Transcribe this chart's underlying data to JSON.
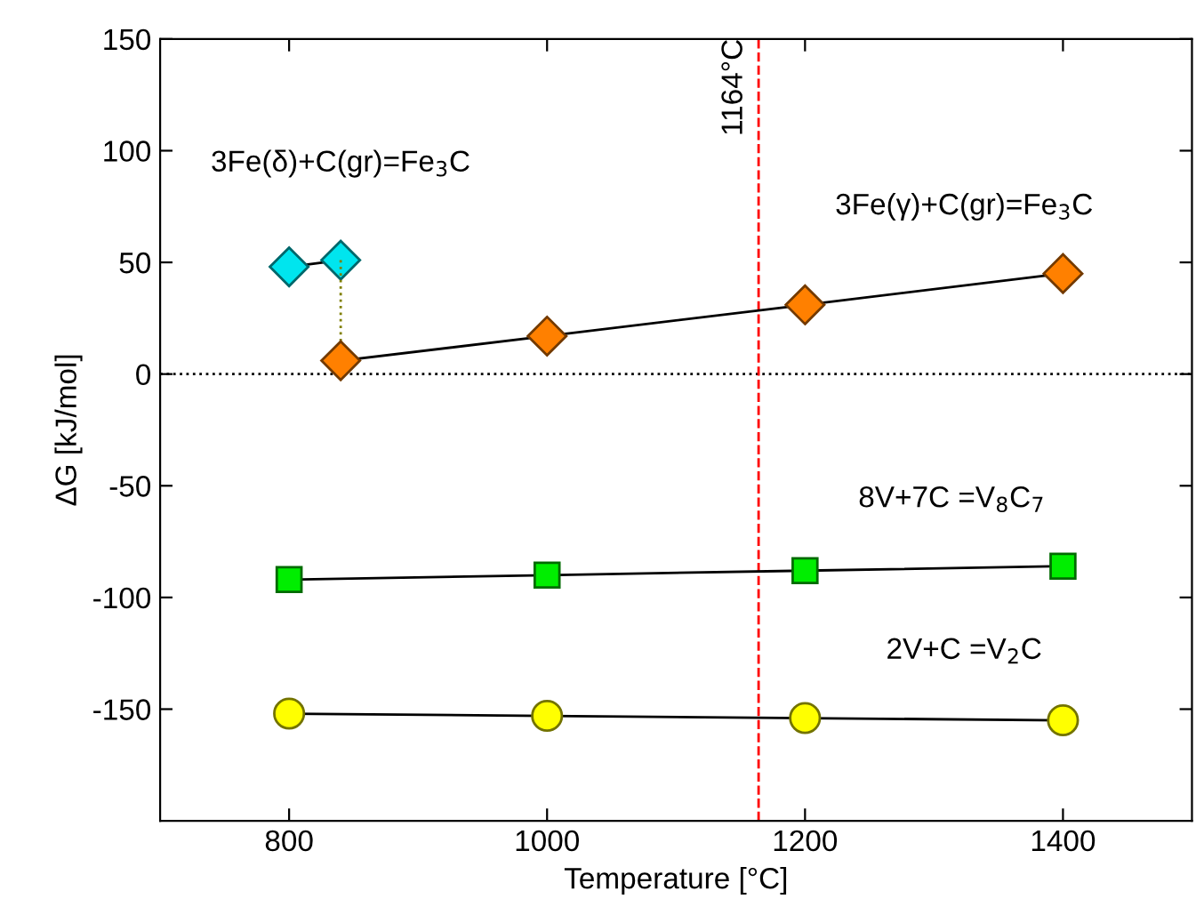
{
  "chart_data": {
    "type": "line",
    "xlabel": "Temperature [°C]",
    "ylabel": "ΔG [kJ/mol]",
    "xlim": [
      700,
      1500
    ],
    "xticks": [
      800,
      1000,
      1200,
      1400
    ],
    "ylim": [
      -200,
      150
    ],
    "yticks": [
      -150,
      -100,
      -50,
      0,
      50,
      100,
      150
    ],
    "grid": false,
    "legend": false,
    "series": [
      {
        "name": "3Fe(δ)+C(gr)=Fe$_{3}$C",
        "color": "#00e5ee",
        "marker": "diamond",
        "line_style": "solid",
        "x": [
          800,
          840
        ],
        "values": [
          48,
          51
        ]
      },
      {
        "color": "#808000",
        "marker": "none",
        "line_style": "dotted",
        "x": [
          840,
          840
        ],
        "values": [
          51,
          6
        ]
      },
      {
        "name": "3Fe(γ)+C(gr)=Fe$_{3}$C",
        "color": "#ff8000",
        "marker": "diamond",
        "line_style": "solid",
        "x": [
          840,
          1000,
          1200,
          1400
        ],
        "values": [
          6,
          17,
          31,
          45
        ]
      },
      {
        "name": "8V+7C =V$_{8}$C$_{7}$",
        "color": "#00ee00",
        "marker": "square",
        "line_style": "solid",
        "x": [
          800,
          1000,
          1200,
          1400
        ],
        "values": [
          -92,
          -90,
          -88,
          -86
        ]
      },
      {
        "name": "2V+C =V$_{2}$C",
        "color": "#ffff00",
        "marker": "circle",
        "line_style": "solid",
        "x": [
          800,
          1000,
          1200,
          1400
        ],
        "values": [
          -152,
          -153,
          -154,
          -155
        ]
      }
    ],
    "ref_lines": [
      {
        "axis": "y",
        "value": 0,
        "color": "#000000",
        "line_style": "dotted"
      },
      {
        "axis": "x",
        "value": 1164,
        "label": "1164°C",
        "color": "#ff0000",
        "line_style": "dashed"
      }
    ]
  }
}
